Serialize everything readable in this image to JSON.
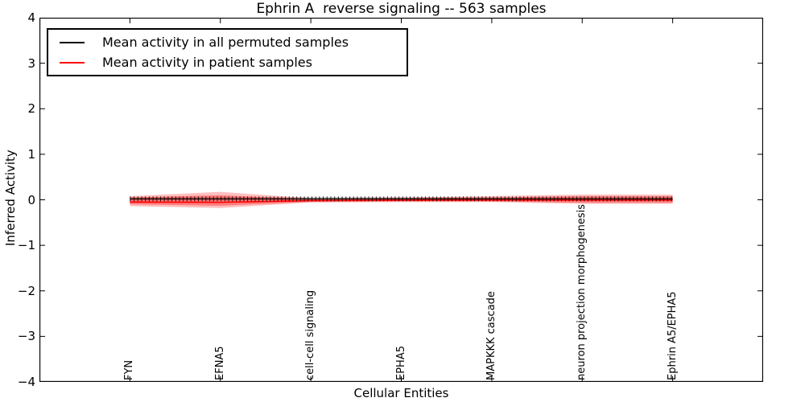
{
  "figure": {
    "title": "Ephrin A  reverse signaling -- 563 samples",
    "xlabel": "Cellular Entities",
    "ylabel": "Inferred Activity"
  },
  "legend": {
    "items": [
      {
        "label": "Mean activity in all permuted samples",
        "color": "#000000"
      },
      {
        "label": "Mean activity in patient samples",
        "color": "#ff0000"
      }
    ]
  },
  "chart_data": {
    "type": "line",
    "title": "Ephrin A  reverse signaling -- 563 samples",
    "xlabel": "Cellular Entities",
    "ylabel": "Inferred Activity",
    "ylim": [
      -4,
      4
    ],
    "yticks": [
      -4,
      -3,
      -2,
      -1,
      0,
      1,
      2,
      3,
      4
    ],
    "grid": false,
    "legend_position": "upper left",
    "categories": [
      "FYN",
      "EFNA5",
      "cell-cell signaling",
      "EPHA5",
      "MAPKKK cascade",
      "neuron projection morphogenesis",
      "Ephrin A5/EPHA5"
    ],
    "series": [
      {
        "name": "Mean activity in all permuted samples",
        "color": "#000000",
        "style": "solid-with-tick-markers",
        "values": [
          0.02,
          0.02,
          0.02,
          0.02,
          0.02,
          0.02,
          0.02
        ]
      },
      {
        "name": "Mean activity in patient samples",
        "color": "#ff0000",
        "style": "solid",
        "values": [
          -0.05,
          -0.055,
          -0.02,
          -0.01,
          -0.005,
          -0.005,
          -0.005
        ]
      }
    ],
    "bands": [
      {
        "name": "permuted-samples-std-band",
        "color": "rgba(90,90,90,0.25)",
        "top": [
          0.06,
          0.06,
          0.06,
          0.06,
          0.06,
          0.06,
          0.06
        ],
        "bottom": [
          -0.025,
          -0.025,
          -0.025,
          -0.025,
          -0.025,
          -0.025,
          -0.025
        ]
      },
      {
        "name": "patient-samples-outer-band",
        "color": "rgba(255,0,0,0.25)",
        "top": [
          0.08,
          0.175,
          0.035,
          0.05,
          0.08,
          0.115,
          0.115
        ],
        "bottom": [
          -0.14,
          -0.18,
          -0.06,
          -0.05,
          -0.05,
          -0.09,
          -0.09
        ]
      },
      {
        "name": "patient-samples-inner-band",
        "color": "rgba(255,0,0,0.35)",
        "top": [
          0.05,
          0.1,
          0.02,
          0.035,
          0.05,
          0.08,
          0.08
        ],
        "bottom": [
          -0.1,
          -0.13,
          -0.045,
          -0.035,
          -0.035,
          -0.065,
          -0.065
        ]
      }
    ]
  }
}
